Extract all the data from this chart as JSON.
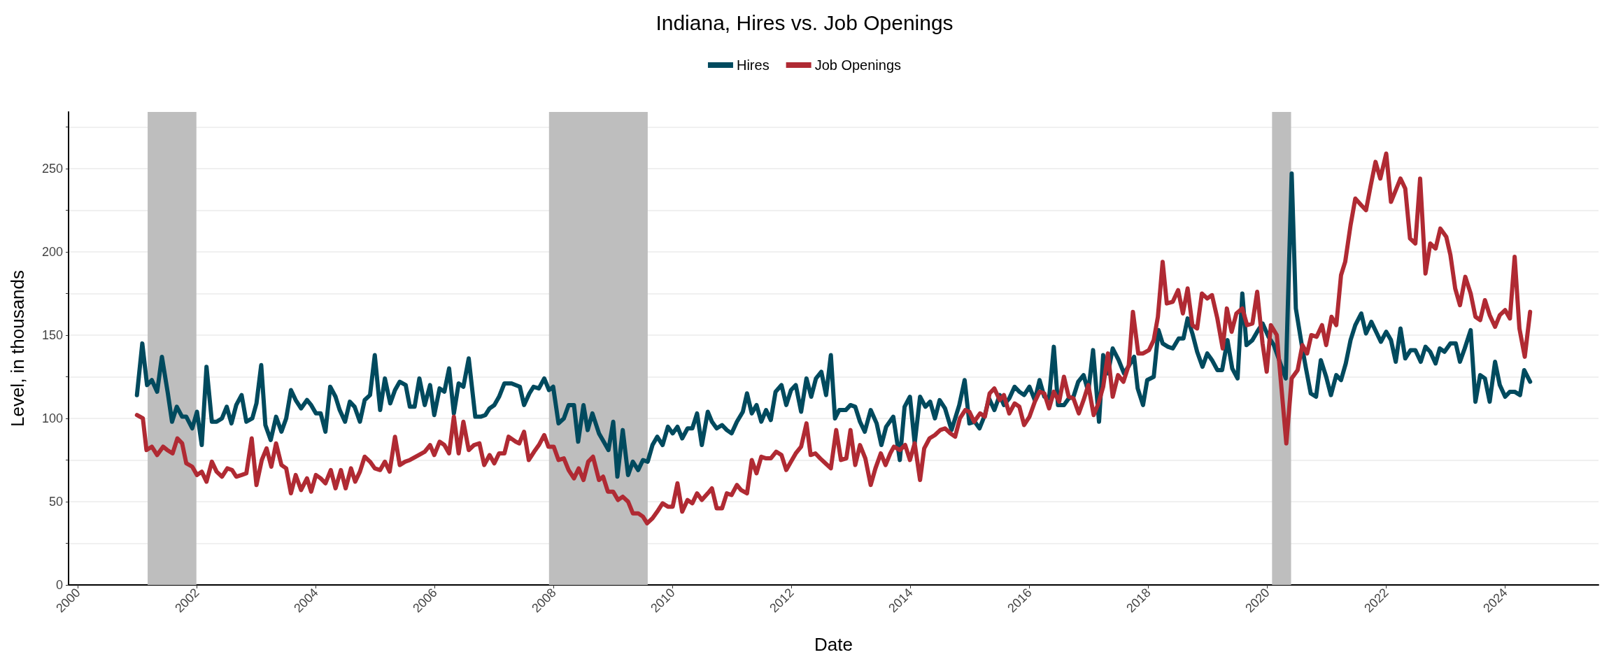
{
  "chart_data": {
    "type": "line",
    "title": "Indiana, Hires vs. Job Openings",
    "xlabel": "Date",
    "ylabel": "Level, in thousands",
    "xlim": [
      1999.84,
      2025.57
    ],
    "xticks": [
      2000,
      2002,
      2004,
      2006,
      2008,
      2010,
      2012,
      2014,
      2016,
      2018,
      2020,
      2022,
      2024
    ],
    "ylim": [
      0,
      284
    ],
    "yticks": [
      0,
      {
        "value": 25,
        "label": null
      },
      50,
      {
        "value": 75,
        "label": null
      },
      100,
      {
        "value": 125,
        "label": null
      },
      150,
      {
        "value": 175,
        "label": null
      },
      200,
      {
        "value": 225,
        "label": null
      },
      250,
      {
        "value": 275,
        "label": null
      }
    ],
    "grid": "y",
    "legend": "top",
    "marker": "none",
    "line_style": "solid",
    "bands": [
      {
        "axis": "x",
        "from": 2001.17,
        "to": 2001.99,
        "color": "#bebebe"
      },
      {
        "axis": "x",
        "from": 2007.92,
        "to": 2009.58,
        "color": "#bebebe"
      },
      {
        "axis": "x",
        "from": 2020.08,
        "to": 2020.4,
        "color": "#bebebe"
      }
    ],
    "series": [
      {
        "name": "Hires",
        "color": "#004a5e",
        "x": [
          2000.99,
          2001.08,
          2001.16,
          2001.24,
          2001.33,
          2001.41,
          2001.51,
          2001.58,
          2001.66,
          2001.75,
          2001.82,
          2001.92,
          2002.0,
          2002.08,
          2002.16,
          2002.25,
          2002.33,
          2002.42,
          2002.5,
          2002.58,
          2002.66,
          2002.75,
          2002.83,
          2002.93,
          2003.0,
          2003.08,
          2003.15,
          2003.24,
          2003.33,
          2003.42,
          2003.5,
          2003.58,
          2003.66,
          2003.75,
          2003.85,
          2003.92,
          2004.0,
          2004.08,
          2004.16,
          2004.24,
          2004.33,
          2004.4,
          2004.49,
          2004.57,
          2004.65,
          2004.74,
          2004.82,
          2004.91,
          2004.99,
          2005.08,
          2005.16,
          2005.25,
          2005.33,
          2005.41,
          2005.51,
          2005.58,
          2005.66,
          2005.74,
          2005.83,
          2005.92,
          2005.99,
          2006.08,
          2006.16,
          2006.24,
          2006.32,
          2006.4,
          2006.48,
          2006.57,
          2006.68,
          2006.77,
          2006.85,
          2006.92,
          2007.0,
          2007.08,
          2007.17,
          2007.29,
          2007.43,
          2007.5,
          2007.59,
          2007.66,
          2007.75,
          2007.84,
          2007.92,
          2007.99,
          2008.08,
          2008.17,
          2008.25,
          2008.34,
          2008.41,
          2008.5,
          2008.57,
          2008.65,
          2008.76,
          2008.84,
          2008.92,
          2009.0,
          2009.07,
          2009.16,
          2009.25,
          2009.33,
          2009.42,
          2009.5,
          2009.58,
          2009.66,
          2009.74,
          2009.83,
          2009.92,
          2010.0,
          2010.08,
          2010.16,
          2010.25,
          2010.33,
          2010.41,
          2010.49,
          2010.59,
          2010.66,
          2010.74,
          2010.83,
          2010.91,
          2010.99,
          2011.08,
          2011.18,
          2011.25,
          2011.33,
          2011.41,
          2011.49,
          2011.57,
          2011.65,
          2011.73,
          2011.83,
          2011.91,
          2011.99,
          2012.07,
          2012.16,
          2012.25,
          2012.33,
          2012.41,
          2012.5,
          2012.58,
          2012.66,
          2012.73,
          2012.8,
          2012.91,
          2012.99,
          2013.07,
          2013.15,
          2013.23,
          2013.33,
          2013.43,
          2013.51,
          2013.59,
          2013.71,
          2013.82,
          2013.9,
          2013.99,
          2014.07,
          2014.16,
          2014.25,
          2014.33,
          2014.41,
          2014.49,
          2014.58,
          2014.69,
          2014.82,
          2014.91,
          2014.99,
          2015.08,
          2015.16,
          2015.25,
          2015.32,
          2015.41,
          2015.5,
          2015.57,
          2015.66,
          2015.75,
          2015.83,
          2015.91,
          2016.0,
          2016.09,
          2016.17,
          2016.25,
          2016.33,
          2016.41,
          2016.48,
          2016.58,
          2016.66,
          2016.74,
          2016.82,
          2016.91,
          2016.99,
          2017.07,
          2017.17,
          2017.24,
          2017.32,
          2017.4,
          2017.5,
          2017.59,
          2017.68,
          2017.76,
          2017.82,
          2017.91,
          2017.98,
          2018.09,
          2018.17,
          2018.24,
          2018.33,
          2018.41,
          2018.51,
          2018.59,
          2018.66,
          2018.74,
          2018.82,
          2018.91,
          2018.99,
          2019.07,
          2019.16,
          2019.24,
          2019.33,
          2019.41,
          2019.5,
          2019.58,
          2019.65,
          2019.75,
          2019.83,
          2019.92,
          2020.02,
          2020.11,
          2020.2,
          2020.31,
          2020.41,
          2020.48,
          2020.58,
          2020.65,
          2020.73,
          2020.82,
          2020.9,
          2020.99,
          2021.07,
          2021.16,
          2021.24,
          2021.32,
          2021.4,
          2021.48,
          2021.58,
          2021.66,
          2021.75,
          2021.83,
          2021.91,
          2022.0,
          2022.08,
          2022.16,
          2022.24,
          2022.32,
          2022.41,
          2022.49,
          2022.58,
          2022.66,
          2022.74,
          2022.83,
          2022.9,
          2022.98,
          2023.08,
          2023.17,
          2023.24,
          2023.32,
          2023.42,
          2023.5,
          2023.58,
          2023.66,
          2023.74,
          2023.83,
          2023.91,
          2024.0,
          2024.08,
          2024.16,
          2024.25,
          2024.32,
          2024.42
        ],
        "values": [
          114,
          145,
          120,
          123,
          116,
          137,
          115,
          98,
          107,
          101,
          101,
          94,
          104,
          84,
          131,
          98,
          98,
          100,
          107,
          97,
          108,
          114,
          98,
          100,
          109,
          132,
          96,
          87,
          101,
          92,
          100,
          117,
          111,
          106,
          111,
          108,
          103,
          103,
          92,
          119,
          113,
          105,
          98,
          110,
          107,
          98,
          111,
          114,
          138,
          105,
          124,
          109,
          117,
          122,
          120,
          107,
          107,
          124,
          108,
          120,
          102,
          118,
          116,
          130,
          103,
          121,
          119,
          136,
          101,
          101,
          102,
          106,
          108,
          113,
          121,
          121,
          119,
          108,
          115,
          119,
          118,
          124,
          117,
          119,
          97,
          100,
          108,
          108,
          86,
          108,
          93,
          103,
          91,
          86,
          81,
          98,
          65,
          93,
          66,
          74,
          69,
          75,
          74,
          84,
          89,
          84,
          95,
          91,
          95,
          88,
          94,
          94,
          103,
          84,
          104,
          98,
          94,
          96,
          93,
          91,
          98,
          104,
          115,
          103,
          108,
          98,
          105,
          99,
          116,
          120,
          108,
          117,
          120,
          104,
          124,
          113,
          124,
          128,
          114,
          138,
          100,
          105,
          105,
          108,
          107,
          98,
          92,
          105,
          97,
          84,
          95,
          101,
          75,
          107,
          113,
          85,
          113,
          107,
          110,
          100,
          111,
          106,
          93,
          108,
          123,
          97,
          98,
          94,
          102,
          112,
          105,
          114,
          108,
          112,
          119,
          116,
          114,
          119,
          111,
          123,
          113,
          112,
          143,
          108,
          108,
          112,
          113,
          122,
          126,
          116,
          141,
          98,
          138,
          127,
          142,
          135,
          127,
          132,
          137,
          118,
          108,
          123,
          125,
          153,
          145,
          143,
          142,
          148,
          148,
          160,
          151,
          140,
          131,
          139,
          135,
          129,
          129,
          147,
          130,
          124,
          175,
          144,
          147,
          152,
          157,
          149,
          144,
          135,
          124,
          247,
          166,
          144,
          130,
          115,
          113,
          135,
          125,
          114,
          126,
          123,
          133,
          147,
          156,
          163,
          151,
          158,
          152,
          146,
          152,
          147,
          134,
          154,
          136,
          141,
          141,
          134,
          143,
          140,
          133,
          142,
          140,
          145,
          145,
          134,
          142,
          153,
          110,
          126,
          124,
          110,
          134,
          120,
          113,
          116,
          116,
          114,
          129,
          122
        ]
      },
      {
        "name": "Job Openings",
        "color": "#b02a33",
        "x": [
          2000.99,
          2001.09,
          2001.15,
          2001.24,
          2001.33,
          2001.43,
          2001.5,
          2001.59,
          2001.67,
          2001.75,
          2001.82,
          2001.92,
          2002.0,
          2002.08,
          2002.16,
          2002.25,
          2002.33,
          2002.42,
          2002.51,
          2002.59,
          2002.66,
          2002.75,
          2002.83,
          2002.92,
          2003.0,
          2003.09,
          2003.17,
          2003.25,
          2003.33,
          2003.42,
          2003.5,
          2003.58,
          2003.66,
          2003.75,
          2003.85,
          2003.92,
          2004.0,
          2004.08,
          2004.16,
          2004.25,
          2004.33,
          2004.42,
          2004.5,
          2004.59,
          2004.66,
          2004.74,
          2004.82,
          2004.91,
          2004.99,
          2005.08,
          2005.16,
          2005.24,
          2005.33,
          2005.41,
          2005.5,
          2005.58,
          2005.73,
          2005.83,
          2005.92,
          2005.99,
          2006.08,
          2006.16,
          2006.24,
          2006.32,
          2006.4,
          2006.48,
          2006.57,
          2006.66,
          2006.75,
          2006.83,
          2006.92,
          2007.0,
          2007.08,
          2007.17,
          2007.24,
          2007.36,
          2007.42,
          2007.5,
          2007.58,
          2007.67,
          2007.75,
          2007.84,
          2007.91,
          2008.0,
          2008.08,
          2008.17,
          2008.25,
          2008.34,
          2008.42,
          2008.5,
          2008.58,
          2008.66,
          2008.76,
          2008.83,
          2008.91,
          2009.0,
          2009.08,
          2009.16,
          2009.25,
          2009.33,
          2009.42,
          2009.5,
          2009.57,
          2009.66,
          2009.74,
          2009.83,
          2009.92,
          2010.0,
          2010.08,
          2010.16,
          2010.25,
          2010.33,
          2010.41,
          2010.49,
          2010.59,
          2010.66,
          2010.74,
          2010.83,
          2010.91,
          2010.99,
          2011.08,
          2011.15,
          2011.25,
          2011.33,
          2011.41,
          2011.49,
          2011.57,
          2011.65,
          2011.74,
          2011.83,
          2011.91,
          2011.99,
          2012.07,
          2012.16,
          2012.25,
          2012.32,
          2012.4,
          2012.48,
          2012.57,
          2012.66,
          2012.75,
          2012.83,
          2012.92,
          2012.99,
          2013.07,
          2013.15,
          2013.24,
          2013.33,
          2013.41,
          2013.5,
          2013.58,
          2013.66,
          2013.72,
          2013.82,
          2013.91,
          2013.99,
          2014.07,
          2014.16,
          2014.23,
          2014.32,
          2014.41,
          2014.5,
          2014.58,
          2014.67,
          2014.75,
          2014.83,
          2014.92,
          2014.99,
          2015.07,
          2015.17,
          2015.25,
          2015.33,
          2015.41,
          2015.5,
          2015.57,
          2015.66,
          2015.75,
          2015.83,
          2015.91,
          2016.0,
          2016.09,
          2016.17,
          2016.25,
          2016.33,
          2016.41,
          2016.5,
          2016.58,
          2016.66,
          2016.74,
          2016.83,
          2016.91,
          2016.99,
          2017.08,
          2017.16,
          2017.24,
          2017.32,
          2017.4,
          2017.49,
          2017.58,
          2017.67,
          2017.74,
          2017.83,
          2017.91,
          2018.01,
          2018.09,
          2018.16,
          2018.24,
          2018.31,
          2018.41,
          2018.5,
          2018.58,
          2018.66,
          2018.74,
          2018.82,
          2018.9,
          2018.99,
          2019.07,
          2019.16,
          2019.25,
          2019.32,
          2019.4,
          2019.48,
          2019.58,
          2019.66,
          2019.75,
          2019.83,
          2019.92,
          2019.99,
          2020.06,
          2020.16,
          2020.32,
          2020.41,
          2020.51,
          2020.59,
          2020.67,
          2020.74,
          2020.83,
          2020.92,
          2020.99,
          2021.08,
          2021.16,
          2021.24,
          2021.31,
          2021.4,
          2021.48,
          2021.58,
          2021.66,
          2021.74,
          2021.82,
          2021.9,
          2022.0,
          2022.08,
          2022.16,
          2022.24,
          2022.32,
          2022.4,
          2022.49,
          2022.57,
          2022.66,
          2022.74,
          2022.83,
          2022.91,
          2023.01,
          2023.08,
          2023.16,
          2023.24,
          2023.33,
          2023.42,
          2023.5,
          2023.58,
          2023.66,
          2023.74,
          2023.83,
          2023.91,
          2024.0,
          2024.08,
          2024.16,
          2024.24,
          2024.33,
          2024.42
        ],
        "values": [
          102,
          100,
          81,
          83,
          78,
          83,
          81,
          79,
          88,
          85,
          73,
          71,
          66,
          68,
          62,
          74,
          68,
          65,
          70,
          69,
          65,
          66,
          67,
          88,
          60,
          75,
          82,
          71,
          85,
          72,
          70,
          55,
          66,
          57,
          64,
          56,
          66,
          64,
          61,
          69,
          58,
          69,
          58,
          70,
          62,
          68,
          77,
          74,
          70,
          69,
          74,
          68,
          89,
          72,
          74,
          75,
          78,
          80,
          84,
          78,
          86,
          84,
          79,
          101,
          79,
          98,
          81,
          84,
          85,
          72,
          78,
          73,
          79,
          79,
          89,
          86,
          85,
          92,
          75,
          80,
          84,
          90,
          83,
          83,
          75,
          76,
          69,
          64,
          70,
          63,
          74,
          77,
          63,
          65,
          56,
          56,
          51,
          53,
          50,
          43,
          43,
          41,
          37,
          40,
          44,
          49,
          47,
          47,
          61,
          44,
          51,
          49,
          55,
          51,
          55,
          58,
          46,
          46,
          55,
          54,
          60,
          57,
          55,
          75,
          67,
          77,
          76,
          76,
          80,
          78,
          69,
          74,
          79,
          83,
          97,
          78,
          79,
          76,
          73,
          70,
          93,
          75,
          76,
          93,
          72,
          84,
          76,
          60,
          70,
          79,
          72,
          79,
          83,
          81,
          84,
          75,
          85,
          63,
          82,
          88,
          90,
          93,
          94,
          91,
          89,
          100,
          105,
          104,
          98,
          103,
          101,
          115,
          118,
          111,
          114,
          103,
          109,
          107,
          96,
          101,
          110,
          116,
          115,
          106,
          116,
          110,
          125,
          113,
          112,
          103,
          111,
          120,
          102,
          109,
          119,
          139,
          113,
          126,
          122,
          132,
          164,
          139,
          139,
          141,
          147,
          161,
          194,
          169,
          170,
          177,
          163,
          178,
          156,
          154,
          175,
          172,
          174,
          160,
          142,
          166,
          152,
          163,
          166,
          156,
          157,
          176,
          145,
          128,
          156,
          150,
          85,
          124,
          129,
          144,
          139,
          150,
          149,
          156,
          144,
          161,
          156,
          186,
          194,
          216,
          232,
          228,
          225,
          240,
          254,
          244,
          259,
          230,
          237,
          244,
          238,
          208,
          205,
          244,
          187,
          205,
          202,
          214,
          209,
          198,
          178,
          168,
          185,
          175,
          161,
          159,
          171,
          162,
          155,
          162,
          165,
          160,
          197,
          154,
          137,
          164
        ]
      }
    ]
  }
}
